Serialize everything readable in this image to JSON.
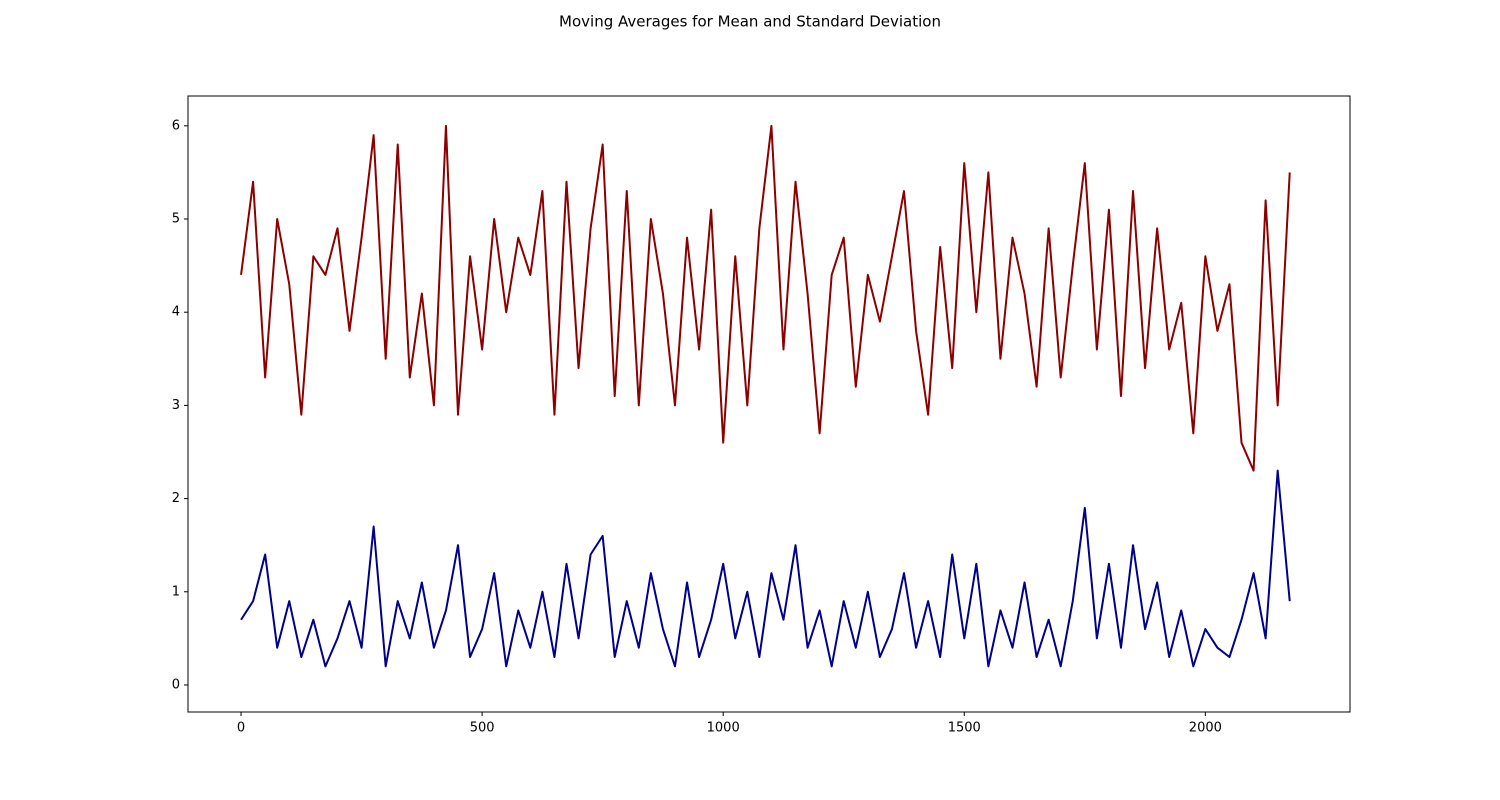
{
  "chart_data": {
    "type": "line",
    "title": "Moving Averages for Mean and Standard Deviation",
    "x": [
      0,
      25,
      50,
      75,
      100,
      125,
      150,
      175,
      200,
      225,
      250,
      275,
      300,
      325,
      350,
      375,
      400,
      425,
      450,
      475,
      500,
      525,
      550,
      575,
      600,
      625,
      650,
      675,
      700,
      725,
      750,
      775,
      800,
      825,
      850,
      875,
      900,
      925,
      950,
      975,
      1000,
      1025,
      1050,
      1075,
      1100,
      1125,
      1150,
      1175,
      1200,
      1225,
      1250,
      1275,
      1300,
      1325,
      1350,
      1375,
      1400,
      1425,
      1450,
      1475,
      1500,
      1525,
      1550,
      1575,
      1600,
      1625,
      1650,
      1675,
      1700,
      1725,
      1750,
      1775,
      1800,
      1825,
      1850,
      1875,
      1900,
      1925,
      1950,
      1975,
      2000,
      2025,
      2050,
      2075,
      2100,
      2125,
      2150,
      2175
    ],
    "series": [
      {
        "color": "#8b0000",
        "values": [
          4.4,
          5.4,
          3.3,
          5.0,
          4.3,
          2.9,
          4.6,
          4.4,
          4.9,
          3.8,
          4.8,
          5.9,
          3.5,
          5.8,
          3.3,
          4.2,
          3.0,
          6.0,
          2.9,
          4.6,
          3.6,
          5.0,
          4.0,
          4.8,
          4.4,
          5.3,
          2.9,
          5.4,
          3.4,
          4.9,
          5.8,
          3.1,
          5.3,
          3.0,
          5.0,
          4.2,
          3.0,
          4.8,
          3.6,
          5.1,
          2.6,
          4.6,
          3.0,
          4.9,
          6.0,
          3.6,
          5.4,
          4.2,
          2.7,
          4.4,
          4.8,
          3.2,
          4.4,
          3.9,
          4.6,
          5.3,
          3.8,
          2.9,
          4.7,
          3.4,
          5.6,
          4.0,
          5.5,
          3.5,
          4.8,
          4.2,
          3.2,
          4.9,
          3.3,
          4.5,
          5.6,
          3.6,
          5.1,
          3.1,
          5.3,
          3.4,
          4.9,
          3.6,
          4.1,
          2.7,
          4.6,
          3.8,
          4.3,
          2.6,
          2.3,
          5.2,
          3.0,
          5.5
        ]
      },
      {
        "color": "#00008b",
        "values": [
          0.7,
          0.9,
          1.4,
          0.4,
          0.9,
          0.3,
          0.7,
          0.2,
          0.5,
          0.9,
          0.4,
          1.7,
          0.2,
          0.9,
          0.5,
          1.1,
          0.4,
          0.8,
          1.5,
          0.3,
          0.6,
          1.2,
          0.2,
          0.8,
          0.4,
          1.0,
          0.3,
          1.3,
          0.5,
          1.4,
          1.6,
          0.3,
          0.9,
          0.4,
          1.2,
          0.6,
          0.2,
          1.1,
          0.3,
          0.7,
          1.3,
          0.5,
          1.0,
          0.3,
          1.2,
          0.7,
          1.5,
          0.4,
          0.8,
          0.2,
          0.9,
          0.4,
          1.0,
          0.3,
          0.6,
          1.2,
          0.4,
          0.9,
          0.3,
          1.4,
          0.5,
          1.3,
          0.2,
          0.8,
          0.4,
          1.1,
          0.3,
          0.7,
          0.2,
          0.9,
          1.9,
          0.5,
          1.3,
          0.4,
          1.5,
          0.6,
          1.1,
          0.3,
          0.8,
          0.2,
          0.6,
          0.4,
          0.3,
          0.7,
          1.2,
          0.5,
          2.3,
          0.9
        ]
      }
    ],
    "xlim": [
      -110,
      2300
    ],
    "xticks": [
      0,
      500,
      1000,
      1500,
      2000
    ],
    "ylim": [
      -0.29,
      6.32
    ],
    "yticks": [
      0,
      1,
      2,
      3,
      4,
      5,
      6
    ],
    "grid": false
  }
}
